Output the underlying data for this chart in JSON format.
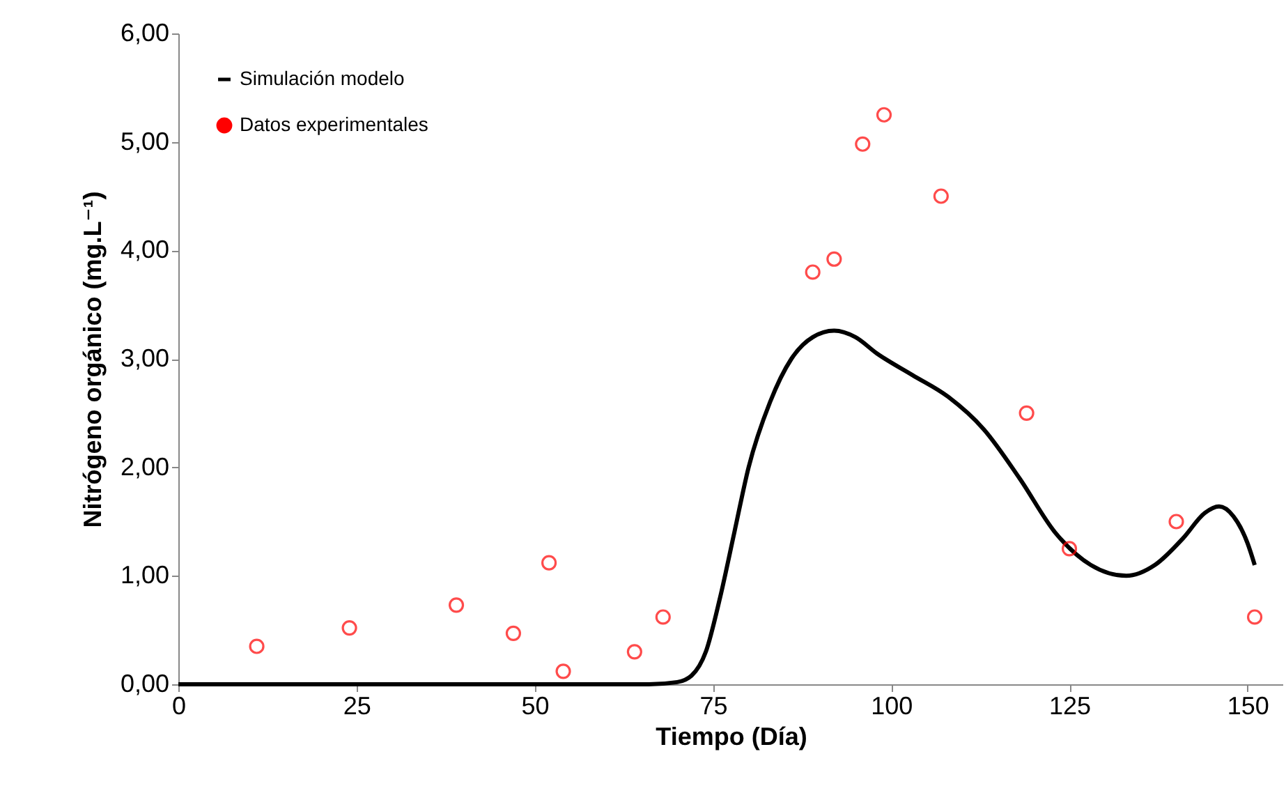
{
  "chart_data": {
    "type": "scatter",
    "xlabel": "Tiempo (Día)",
    "ylabel": "Nitrógeno orgánico (mg.L⁻¹)",
    "xlim": [
      0,
      155
    ],
    "xticks": [
      0,
      25,
      50,
      75,
      100,
      125,
      150
    ],
    "ylim": [
      0,
      6
    ],
    "yticks": [
      {
        "value": 0,
        "label": "0,00"
      },
      {
        "value": 1,
        "label": "1,00"
      },
      {
        "value": 2,
        "label": "2,00"
      },
      {
        "value": 3,
        "label": "3,00"
      },
      {
        "value": 4,
        "label": "4,00"
      },
      {
        "value": 5,
        "label": "5,00"
      },
      {
        "value": 6,
        "label": "6,00"
      }
    ],
    "grid": false,
    "legend": "top left",
    "series": [
      {
        "name": "Simulación modelo",
        "type": "line",
        "color": "#000000",
        "marker": "none",
        "line_style": "solid",
        "x": [
          0,
          10,
          20,
          30,
          40,
          50,
          60,
          66,
          70,
          72,
          74,
          76,
          78,
          80,
          83,
          86,
          89,
          92,
          95,
          98,
          103,
          108,
          113,
          118,
          123,
          128,
          133,
          137,
          141,
          144,
          146,
          148,
          150,
          151
        ],
        "values": [
          0,
          0,
          0,
          0,
          0,
          0,
          0,
          0,
          0.02,
          0.08,
          0.3,
          0.8,
          1.4,
          2.0,
          2.6,
          3.0,
          3.2,
          3.26,
          3.2,
          3.05,
          2.85,
          2.65,
          2.35,
          1.9,
          1.4,
          1.1,
          1.0,
          1.1,
          1.35,
          1.58,
          1.64,
          1.55,
          1.3,
          1.1
        ]
      },
      {
        "name": "Datos experimentales",
        "type": "scatter",
        "color": "#ff0000",
        "marker": "circle",
        "x": [
          11,
          24,
          39,
          47,
          52,
          54,
          64,
          68,
          89,
          92,
          96,
          99,
          107,
          119,
          125,
          140,
          151
        ],
        "values": [
          0.35,
          0.52,
          0.73,
          0.47,
          1.12,
          0.12,
          0.3,
          0.62,
          3.8,
          3.92,
          4.98,
          5.25,
          4.5,
          2.5,
          1.25,
          1.5,
          0.62
        ]
      }
    ]
  }
}
